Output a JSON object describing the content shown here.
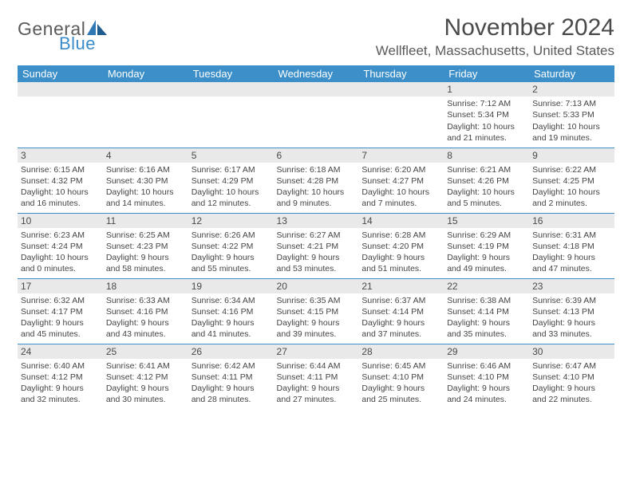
{
  "logo": {
    "general": "General",
    "blue": "Blue",
    "accent_color": "#3a8cc9"
  },
  "title": "November 2024",
  "location": "Wellfleet, Massachusetts, United States",
  "colors": {
    "header_bg": "#3c8fc8",
    "header_text": "#ffffff",
    "daynum_bg": "#e9e9e9",
    "page_bg": "#ffffff",
    "text": "#444444",
    "rule": "#3c8fc8"
  },
  "weekdays": [
    "Sunday",
    "Monday",
    "Tuesday",
    "Wednesday",
    "Thursday",
    "Friday",
    "Saturday"
  ],
  "weeks": [
    [
      null,
      null,
      null,
      null,
      null,
      {
        "n": "1",
        "sr": "Sunrise: 7:12 AM",
        "ss": "Sunset: 5:34 PM",
        "d1": "Daylight: 10 hours",
        "d2": "and 21 minutes."
      },
      {
        "n": "2",
        "sr": "Sunrise: 7:13 AM",
        "ss": "Sunset: 5:33 PM",
        "d1": "Daylight: 10 hours",
        "d2": "and 19 minutes."
      }
    ],
    [
      {
        "n": "3",
        "sr": "Sunrise: 6:15 AM",
        "ss": "Sunset: 4:32 PM",
        "d1": "Daylight: 10 hours",
        "d2": "and 16 minutes."
      },
      {
        "n": "4",
        "sr": "Sunrise: 6:16 AM",
        "ss": "Sunset: 4:30 PM",
        "d1": "Daylight: 10 hours",
        "d2": "and 14 minutes."
      },
      {
        "n": "5",
        "sr": "Sunrise: 6:17 AM",
        "ss": "Sunset: 4:29 PM",
        "d1": "Daylight: 10 hours",
        "d2": "and 12 minutes."
      },
      {
        "n": "6",
        "sr": "Sunrise: 6:18 AM",
        "ss": "Sunset: 4:28 PM",
        "d1": "Daylight: 10 hours",
        "d2": "and 9 minutes."
      },
      {
        "n": "7",
        "sr": "Sunrise: 6:20 AM",
        "ss": "Sunset: 4:27 PM",
        "d1": "Daylight: 10 hours",
        "d2": "and 7 minutes."
      },
      {
        "n": "8",
        "sr": "Sunrise: 6:21 AM",
        "ss": "Sunset: 4:26 PM",
        "d1": "Daylight: 10 hours",
        "d2": "and 5 minutes."
      },
      {
        "n": "9",
        "sr": "Sunrise: 6:22 AM",
        "ss": "Sunset: 4:25 PM",
        "d1": "Daylight: 10 hours",
        "d2": "and 2 minutes."
      }
    ],
    [
      {
        "n": "10",
        "sr": "Sunrise: 6:23 AM",
        "ss": "Sunset: 4:24 PM",
        "d1": "Daylight: 10 hours",
        "d2": "and 0 minutes."
      },
      {
        "n": "11",
        "sr": "Sunrise: 6:25 AM",
        "ss": "Sunset: 4:23 PM",
        "d1": "Daylight: 9 hours",
        "d2": "and 58 minutes."
      },
      {
        "n": "12",
        "sr": "Sunrise: 6:26 AM",
        "ss": "Sunset: 4:22 PM",
        "d1": "Daylight: 9 hours",
        "d2": "and 55 minutes."
      },
      {
        "n": "13",
        "sr": "Sunrise: 6:27 AM",
        "ss": "Sunset: 4:21 PM",
        "d1": "Daylight: 9 hours",
        "d2": "and 53 minutes."
      },
      {
        "n": "14",
        "sr": "Sunrise: 6:28 AM",
        "ss": "Sunset: 4:20 PM",
        "d1": "Daylight: 9 hours",
        "d2": "and 51 minutes."
      },
      {
        "n": "15",
        "sr": "Sunrise: 6:29 AM",
        "ss": "Sunset: 4:19 PM",
        "d1": "Daylight: 9 hours",
        "d2": "and 49 minutes."
      },
      {
        "n": "16",
        "sr": "Sunrise: 6:31 AM",
        "ss": "Sunset: 4:18 PM",
        "d1": "Daylight: 9 hours",
        "d2": "and 47 minutes."
      }
    ],
    [
      {
        "n": "17",
        "sr": "Sunrise: 6:32 AM",
        "ss": "Sunset: 4:17 PM",
        "d1": "Daylight: 9 hours",
        "d2": "and 45 minutes."
      },
      {
        "n": "18",
        "sr": "Sunrise: 6:33 AM",
        "ss": "Sunset: 4:16 PM",
        "d1": "Daylight: 9 hours",
        "d2": "and 43 minutes."
      },
      {
        "n": "19",
        "sr": "Sunrise: 6:34 AM",
        "ss": "Sunset: 4:16 PM",
        "d1": "Daylight: 9 hours",
        "d2": "and 41 minutes."
      },
      {
        "n": "20",
        "sr": "Sunrise: 6:35 AM",
        "ss": "Sunset: 4:15 PM",
        "d1": "Daylight: 9 hours",
        "d2": "and 39 minutes."
      },
      {
        "n": "21",
        "sr": "Sunrise: 6:37 AM",
        "ss": "Sunset: 4:14 PM",
        "d1": "Daylight: 9 hours",
        "d2": "and 37 minutes."
      },
      {
        "n": "22",
        "sr": "Sunrise: 6:38 AM",
        "ss": "Sunset: 4:14 PM",
        "d1": "Daylight: 9 hours",
        "d2": "and 35 minutes."
      },
      {
        "n": "23",
        "sr": "Sunrise: 6:39 AM",
        "ss": "Sunset: 4:13 PM",
        "d1": "Daylight: 9 hours",
        "d2": "and 33 minutes."
      }
    ],
    [
      {
        "n": "24",
        "sr": "Sunrise: 6:40 AM",
        "ss": "Sunset: 4:12 PM",
        "d1": "Daylight: 9 hours",
        "d2": "and 32 minutes."
      },
      {
        "n": "25",
        "sr": "Sunrise: 6:41 AM",
        "ss": "Sunset: 4:12 PM",
        "d1": "Daylight: 9 hours",
        "d2": "and 30 minutes."
      },
      {
        "n": "26",
        "sr": "Sunrise: 6:42 AM",
        "ss": "Sunset: 4:11 PM",
        "d1": "Daylight: 9 hours",
        "d2": "and 28 minutes."
      },
      {
        "n": "27",
        "sr": "Sunrise: 6:44 AM",
        "ss": "Sunset: 4:11 PM",
        "d1": "Daylight: 9 hours",
        "d2": "and 27 minutes."
      },
      {
        "n": "28",
        "sr": "Sunrise: 6:45 AM",
        "ss": "Sunset: 4:10 PM",
        "d1": "Daylight: 9 hours",
        "d2": "and 25 minutes."
      },
      {
        "n": "29",
        "sr": "Sunrise: 6:46 AM",
        "ss": "Sunset: 4:10 PM",
        "d1": "Daylight: 9 hours",
        "d2": "and 24 minutes."
      },
      {
        "n": "30",
        "sr": "Sunrise: 6:47 AM",
        "ss": "Sunset: 4:10 PM",
        "d1": "Daylight: 9 hours",
        "d2": "and 22 minutes."
      }
    ]
  ]
}
